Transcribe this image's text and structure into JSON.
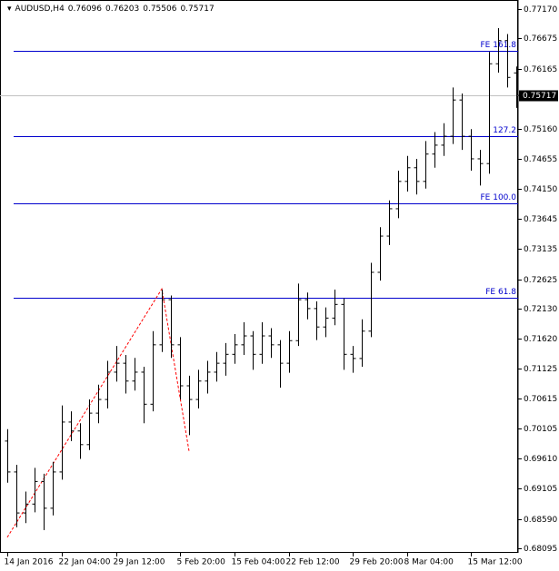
{
  "chart_data": {
    "type": "ohlc",
    "symbol": "AUDUSD,H4",
    "categories": [
      "14 Jan 2016",
      null,
      null,
      null,
      null,
      null,
      "22 Jan 04:00",
      null,
      null,
      null,
      null,
      null,
      "29 Jan 12:00",
      null,
      null,
      null,
      null,
      null,
      null,
      "5 Feb 20:00",
      null,
      null,
      null,
      null,
      null,
      "15 Feb 04:00",
      null,
      null,
      null,
      null,
      null,
      "22 Feb 12:00",
      null,
      null,
      null,
      null,
      null,
      null,
      "29 Feb 20:00",
      null,
      null,
      null,
      null,
      null,
      "8 Mar 04:00",
      null,
      null,
      null,
      null,
      null,
      null,
      "15 Mar 12:00",
      null,
      null,
      null,
      null,
      null
    ],
    "ohlc": [
      [
        0.699,
        0.701,
        0.692,
        0.6938
      ],
      [
        0.6938,
        0.695,
        0.6845,
        0.6869
      ],
      [
        0.6869,
        0.6905,
        0.6852,
        0.6884
      ],
      [
        0.6884,
        0.6945,
        0.687,
        0.6922
      ],
      [
        0.6922,
        0.6935,
        0.684,
        0.6877
      ],
      [
        0.6877,
        0.6955,
        0.6865,
        0.6938
      ],
      [
        0.6938,
        0.705,
        0.6925,
        0.7022
      ],
      [
        0.7022,
        0.704,
        0.699,
        0.7007
      ],
      [
        0.7007,
        0.702,
        0.696,
        0.6984
      ],
      [
        0.6984,
        0.706,
        0.6975,
        0.7037
      ],
      [
        0.7037,
        0.7085,
        0.702,
        0.706
      ],
      [
        0.706,
        0.7125,
        0.7045,
        0.7106
      ],
      [
        0.7106,
        0.715,
        0.709,
        0.7121
      ],
      [
        0.7121,
        0.7135,
        0.707,
        0.7091
      ],
      [
        0.7091,
        0.713,
        0.7075,
        0.7106
      ],
      [
        0.7106,
        0.7115,
        0.702,
        0.7052
      ],
      [
        0.7052,
        0.7175,
        0.704,
        0.7152
      ],
      [
        0.7152,
        0.7245,
        0.714,
        0.7228
      ],
      [
        0.7228,
        0.7235,
        0.713,
        0.7152
      ],
      [
        0.7152,
        0.7165,
        0.706,
        0.7083
      ],
      [
        0.7083,
        0.71,
        0.7,
        0.706
      ],
      [
        0.706,
        0.711,
        0.7045,
        0.7091
      ],
      [
        0.7091,
        0.7125,
        0.707,
        0.7106
      ],
      [
        0.7106,
        0.714,
        0.709,
        0.7121
      ],
      [
        0.7121,
        0.7155,
        0.71,
        0.7136
      ],
      [
        0.7136,
        0.717,
        0.712,
        0.7152
      ],
      [
        0.7152,
        0.719,
        0.7135,
        0.7167
      ],
      [
        0.7167,
        0.7175,
        0.711,
        0.7136
      ],
      [
        0.7136,
        0.719,
        0.712,
        0.7167
      ],
      [
        0.7167,
        0.718,
        0.713,
        0.7152
      ],
      [
        0.7152,
        0.716,
        0.708,
        0.7121
      ],
      [
        0.7121,
        0.7175,
        0.7105,
        0.7159
      ],
      [
        0.7159,
        0.7255,
        0.715,
        0.7228
      ],
      [
        0.7228,
        0.724,
        0.7195,
        0.7213
      ],
      [
        0.7213,
        0.7225,
        0.716,
        0.7182
      ],
      [
        0.7182,
        0.7215,
        0.7165,
        0.7197
      ],
      [
        0.7197,
        0.7245,
        0.7185,
        0.722
      ],
      [
        0.722,
        0.723,
        0.711,
        0.7136
      ],
      [
        0.7136,
        0.715,
        0.7105,
        0.7129
      ],
      [
        0.7129,
        0.7195,
        0.7115,
        0.7175
      ],
      [
        0.7175,
        0.729,
        0.7165,
        0.7274
      ],
      [
        0.7274,
        0.735,
        0.726,
        0.7335
      ],
      [
        0.7335,
        0.7395,
        0.732,
        0.7381
      ],
      [
        0.7381,
        0.7445,
        0.7365,
        0.7427
      ],
      [
        0.7427,
        0.747,
        0.741,
        0.745
      ],
      [
        0.745,
        0.7465,
        0.7405,
        0.7427
      ],
      [
        0.7427,
        0.7495,
        0.7415,
        0.7473
      ],
      [
        0.7473,
        0.751,
        0.745,
        0.7488
      ],
      [
        0.7488,
        0.7525,
        0.747,
        0.7503
      ],
      [
        0.7503,
        0.7585,
        0.749,
        0.7564
      ],
      [
        0.7564,
        0.7575,
        0.748,
        0.7503
      ],
      [
        0.7503,
        0.7515,
        0.7445,
        0.7465
      ],
      [
        0.7465,
        0.748,
        0.742,
        0.7457
      ],
      [
        0.7457,
        0.7645,
        0.744,
        0.7625
      ],
      [
        0.7625,
        0.7685,
        0.761,
        0.7664
      ],
      [
        0.7664,
        0.7675,
        0.7585,
        0.7602
      ],
      [
        0.76096,
        0.76203,
        0.75506,
        0.75717
      ]
    ],
    "ylim": [
      0.68019,
      0.77323
    ],
    "yticks": [
      {
        "value": 0.7717,
        "label": "0.77170"
      },
      {
        "value": 0.76675,
        "label": "0.76675"
      },
      {
        "value": 0.76165,
        "label": "0.76165"
      },
      {
        "value": 0.7516,
        "label": "0.75160"
      },
      {
        "value": 0.74655,
        "label": "0.74655"
      },
      {
        "value": 0.7415,
        "label": "0.74150"
      },
      {
        "value": 0.73645,
        "label": "0.73645"
      },
      {
        "value": 0.73135,
        "label": "0.73135"
      },
      {
        "value": 0.72625,
        "label": "0.72625"
      },
      {
        "value": 0.7213,
        "label": "0.72130"
      },
      {
        "value": 0.7162,
        "label": "0.71620"
      },
      {
        "value": 0.71125,
        "label": "0.71125"
      },
      {
        "value": 0.70615,
        "label": "0.70615"
      },
      {
        "value": 0.70105,
        "label": "0.70105"
      },
      {
        "value": 0.6961,
        "label": "0.69610"
      },
      {
        "value": 0.69105,
        "label": "0.69105"
      },
      {
        "value": 0.6859,
        "label": "0.68590"
      },
      {
        "value": 0.68095,
        "label": "0.68095"
      }
    ],
    "levels": [
      {
        "label": "FE 161.8",
        "value": 0.7647
      },
      {
        "label": "127.2",
        "value": 0.7503
      },
      {
        "label": "FE 100.0",
        "value": 0.739
      },
      {
        "label": "FE 61.8",
        "value": 0.7231
      }
    ],
    "zigzag": {
      "bars": [
        0,
        17,
        20
      ],
      "values": [
        0.6828,
        0.7246,
        0.6973
      ]
    },
    "color": "#000000",
    "level_color": "#0000cd",
    "zigzag_color": "#ff0000"
  }
}
